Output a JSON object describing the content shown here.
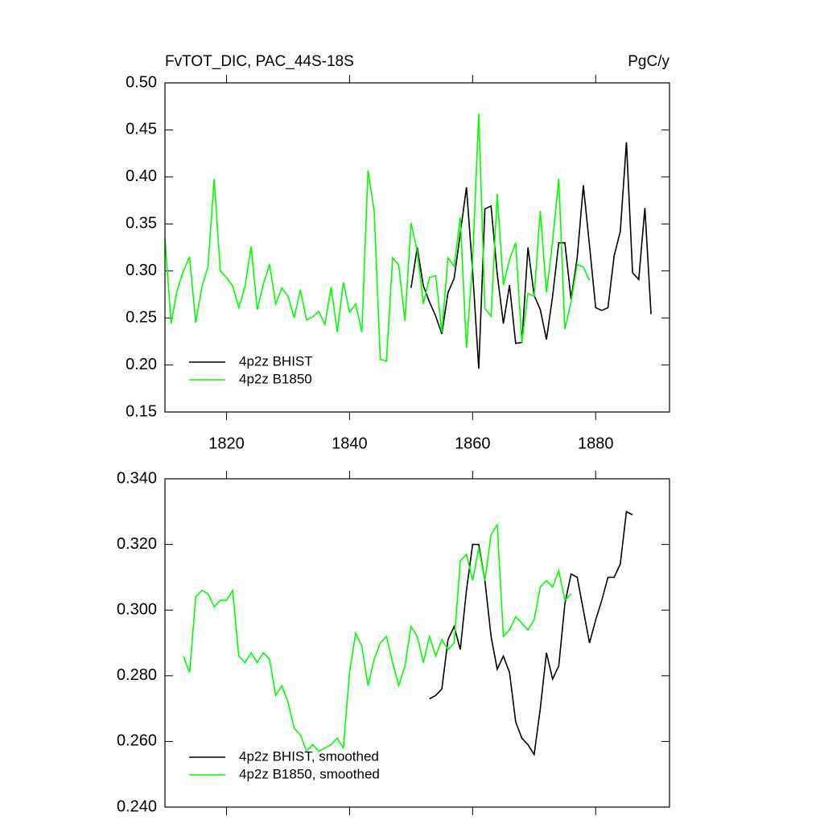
{
  "chart_data": [
    {
      "type": "line",
      "title": "FvTOT_DIC, PAC_44S-18S",
      "right_title": "PgC/y",
      "xlim": [
        1810,
        1892
      ],
      "xticks": [
        1820,
        1840,
        1860,
        1880
      ],
      "xtick_labels": true,
      "ylim": [
        0.15,
        0.5
      ],
      "yticks": [
        0.15,
        {
          "value": 0.2,
          "label": "0.20"
        },
        0.25,
        {
          "value": 0.3,
          "label": "0.30"
        },
        0.35,
        {
          "value": 0.4,
          "label": "0.40"
        },
        0.45,
        {
          "value": 0.5,
          "label": "0.50"
        }
      ],
      "legend": "lower left",
      "series": [
        {
          "name": "4p2z BHIST",
          "color": "#000000",
          "x": [
            1850,
            1851,
            1852,
            1853,
            1854,
            1855,
            1856,
            1857,
            1858,
            1859,
            1860,
            1861,
            1862,
            1863,
            1864,
            1865,
            1866,
            1867,
            1868,
            1869,
            1870,
            1871,
            1872,
            1873,
            1874,
            1875,
            1876,
            1877,
            1878,
            1879,
            1880,
            1881,
            1882,
            1883,
            1884,
            1885,
            1886,
            1887,
            1888,
            1889
          ],
          "values": [
            0.282,
            0.325,
            0.284,
            0.267,
            0.252,
            0.233,
            0.277,
            0.292,
            0.34,
            0.389,
            0.3,
            0.196,
            0.366,
            0.369,
            0.297,
            0.244,
            0.285,
            0.223,
            0.224,
            0.325,
            0.274,
            0.259,
            0.227,
            0.273,
            0.33,
            0.33,
            0.27,
            0.314,
            0.391,
            0.327,
            0.261,
            0.258,
            0.261,
            0.316,
            0.342,
            0.437,
            0.298,
            0.291,
            0.367,
            0.254
          ]
        },
        {
          "name": "4p2z B1850",
          "color": "#00ff00",
          "x": [
            1810,
            1811,
            1812,
            1813,
            1814,
            1815,
            1816,
            1817,
            1818,
            1819,
            1820,
            1821,
            1822,
            1823,
            1824,
            1825,
            1826,
            1827,
            1828,
            1829,
            1830,
            1831,
            1832,
            1833,
            1834,
            1835,
            1836,
            1837,
            1838,
            1839,
            1840,
            1841,
            1842,
            1843,
            1844,
            1845,
            1846,
            1847,
            1848,
            1849,
            1850,
            1851,
            1852,
            1853,
            1854,
            1855,
            1856,
            1857,
            1858,
            1859,
            1860,
            1861,
            1862,
            1863,
            1864,
            1865,
            1866,
            1867,
            1868,
            1869,
            1870,
            1871,
            1872,
            1873,
            1874,
            1875,
            1876,
            1877,
            1878,
            1879
          ],
          "values": [
            0.335,
            0.244,
            0.28,
            0.3,
            0.315,
            0.245,
            0.283,
            0.305,
            0.398,
            0.3,
            0.293,
            0.284,
            0.261,
            0.283,
            0.326,
            0.259,
            0.286,
            0.307,
            0.265,
            0.282,
            0.273,
            0.25,
            0.28,
            0.248,
            0.251,
            0.257,
            0.243,
            0.283,
            0.235,
            0.288,
            0.256,
            0.265,
            0.235,
            0.407,
            0.364,
            0.206,
            0.204,
            0.314,
            0.306,
            0.247,
            0.351,
            0.321,
            0.265,
            0.293,
            0.295,
            0.235,
            0.314,
            0.305,
            0.357,
            0.218,
            0.31,
            0.467,
            0.26,
            0.252,
            0.382,
            0.285,
            0.312,
            0.33,
            0.224,
            0.276,
            0.273,
            0.364,
            0.277,
            0.331,
            0.398,
            0.238,
            0.267,
            0.307,
            0.304,
            0.29
          ]
        }
      ]
    },
    {
      "type": "line",
      "xlim": [
        1810,
        1892
      ],
      "xticks": [
        1820,
        1840,
        1860,
        1880
      ],
      "xtick_labels": false,
      "ylim": [
        0.24,
        0.34
      ],
      "yticks": [
        {
          "value": 0.24,
          "label": "0.240"
        },
        {
          "value": 0.26,
          "label": "0.260"
        },
        {
          "value": 0.28,
          "label": "0.280"
        },
        {
          "value": 0.3,
          "label": "0.300"
        },
        {
          "value": 0.32,
          "label": "0.320"
        },
        {
          "value": 0.34,
          "label": "0.340"
        }
      ],
      "legend": "lower left",
      "series": [
        {
          "name": "4p2z BHIST, smoothed",
          "color": "#000000",
          "x": [
            1853,
            1854,
            1855,
            1856,
            1857,
            1858,
            1859,
            1860,
            1861,
            1862,
            1863,
            1864,
            1865,
            1866,
            1867,
            1868,
            1869,
            1870,
            1871,
            1872,
            1873,
            1874,
            1875,
            1876,
            1877,
            1878,
            1879,
            1880,
            1881,
            1882,
            1883,
            1884,
            1885,
            1886
          ],
          "values": [
            0.273,
            0.274,
            0.276,
            0.291,
            0.295,
            0.288,
            0.306,
            0.32,
            0.32,
            0.309,
            0.292,
            0.282,
            0.286,
            0.281,
            0.266,
            0.261,
            0.259,
            0.256,
            0.27,
            0.287,
            0.279,
            0.283,
            0.302,
            0.311,
            0.31,
            0.3,
            0.29,
            0.297,
            0.303,
            0.31,
            0.31,
            0.314,
            0.33,
            0.329
          ]
        },
        {
          "name": "4p2z B1850, smoothed",
          "color": "#00ff00",
          "x": [
            1813,
            1814,
            1815,
            1816,
            1817,
            1818,
            1819,
            1820,
            1821,
            1822,
            1823,
            1824,
            1825,
            1826,
            1827,
            1828,
            1829,
            1830,
            1831,
            1832,
            1833,
            1834,
            1835,
            1836,
            1837,
            1838,
            1839,
            1840,
            1841,
            1842,
            1843,
            1844,
            1845,
            1846,
            1847,
            1848,
            1849,
            1850,
            1851,
            1852,
            1853,
            1854,
            1855,
            1856,
            1857,
            1858,
            1859,
            1860,
            1861,
            1862,
            1863,
            1864,
            1865,
            1866,
            1867,
            1868,
            1869,
            1870,
            1871,
            1872,
            1873,
            1874,
            1875,
            1876
          ],
          "values": [
            0.286,
            0.281,
            0.304,
            0.306,
            0.305,
            0.301,
            0.303,
            0.303,
            0.306,
            0.286,
            0.284,
            0.287,
            0.284,
            0.287,
            0.285,
            0.274,
            0.277,
            0.272,
            0.264,
            0.262,
            0.257,
            0.259,
            0.257,
            0.258,
            0.259,
            0.261,
            0.258,
            0.281,
            0.293,
            0.289,
            0.277,
            0.285,
            0.29,
            0.292,
            0.284,
            0.277,
            0.283,
            0.295,
            0.292,
            0.284,
            0.292,
            0.286,
            0.291,
            0.288,
            0.29,
            0.315,
            0.317,
            0.309,
            0.319,
            0.309,
            0.323,
            0.326,
            0.292,
            0.294,
            0.298,
            0.296,
            0.294,
            0.297,
            0.307,
            0.309,
            0.307,
            0.312,
            0.303,
            0.305
          ]
        }
      ]
    }
  ]
}
